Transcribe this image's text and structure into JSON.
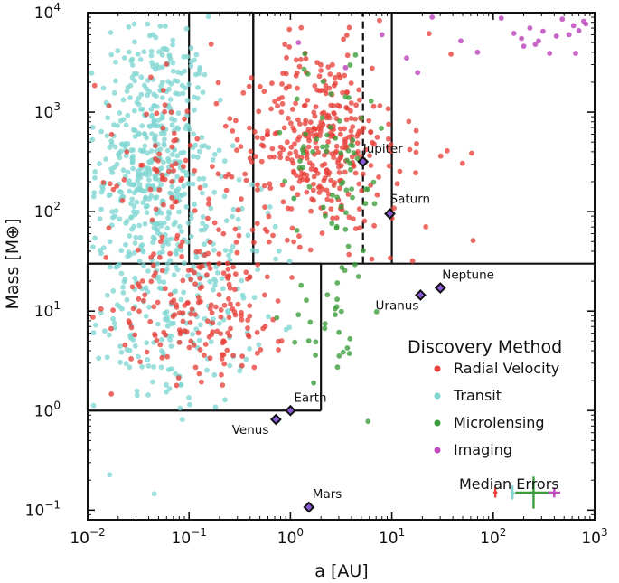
{
  "chart_data": {
    "type": "scatter",
    "xlabel": "a [AU]",
    "ylabel": "Mass [M⊕]",
    "xscale": "log",
    "yscale": "log",
    "xlim": [
      0.01,
      1000
    ],
    "ylim": [
      0.08,
      10000
    ],
    "x_ticks": [
      {
        "value": 0.01,
        "base": "10",
        "exp": "−2"
      },
      {
        "value": 0.1,
        "base": "10",
        "exp": "−1"
      },
      {
        "value": 1,
        "base": "10",
        "exp": "0"
      },
      {
        "value": 10,
        "base": "10",
        "exp": "1"
      },
      {
        "value": 100,
        "base": "10",
        "exp": "2"
      },
      {
        "value": 1000,
        "base": "10",
        "exp": "3"
      }
    ],
    "y_ticks": [
      {
        "value": 0.1,
        "base": "10",
        "exp": "−1"
      },
      {
        "value": 1,
        "base": "10",
        "exp": "0"
      },
      {
        "value": 10,
        "base": "10",
        "exp": "1"
      },
      {
        "value": 100,
        "base": "10",
        "exp": "2"
      },
      {
        "value": 1000,
        "base": "10",
        "exp": "3"
      },
      {
        "value": 10000,
        "base": "10",
        "exp": "4"
      }
    ],
    "legend": {
      "title": "Discovery Method",
      "placement": "lower-right",
      "entries": [
        {
          "label": "Radial Velocity",
          "color": "#e8403a"
        },
        {
          "label": "Transit",
          "color": "#7fd6d2"
        },
        {
          "label": "Microlensing",
          "color": "#3a9c3a"
        },
        {
          "label": "Imaging",
          "color": "#c04cc0"
        }
      ]
    },
    "median_errors_label": "Median Errors",
    "median_errors": [
      {
        "method": "Radial Velocity",
        "x": 105,
        "y": 0.15,
        "color": "#e8403a",
        "xerr_dex": 0.02,
        "yerr_dex": 0.05
      },
      {
        "method": "Transit",
        "x": 155,
        "y": 0.15,
        "color": "#7fd6d2",
        "xerr_dex": 0.02,
        "yerr_dex": 0.07
      },
      {
        "method": "Microlensing",
        "x": 250,
        "y": 0.15,
        "color": "#3a9c3a",
        "xerr_dex": 0.18,
        "yerr_dex": 0.16
      },
      {
        "method": "Imaging",
        "x": 400,
        "y": 0.15,
        "color": "#c04cc0",
        "xerr_dex": 0.06,
        "yerr_dex": 0.05
      }
    ],
    "solar_system": [
      {
        "name": "Mars",
        "a": 1.52,
        "mass": 0.107
      },
      {
        "name": "Venus",
        "a": 0.72,
        "mass": 0.815
      },
      {
        "name": "Earth",
        "a": 1.0,
        "mass": 1.0
      },
      {
        "name": "Uranus",
        "a": 19.2,
        "mass": 14.5
      },
      {
        "name": "Neptune",
        "a": 30.1,
        "mass": 17.1
      },
      {
        "name": "Saturn",
        "a": 9.58,
        "mass": 95.2
      },
      {
        "name": "Jupiter",
        "a": 5.2,
        "mass": 317.8
      }
    ],
    "boxes": [
      {
        "x": [
          0.1,
          0.43
        ],
        "y": [
          30,
          10000
        ],
        "style": "solid"
      },
      {
        "x": [
          0.43,
          5.2
        ],
        "y": [
          30,
          10000
        ],
        "style": "solid-left-dashed-right"
      },
      {
        "x": [
          5.2,
          10
        ],
        "y": [
          30,
          10000
        ],
        "style": "solid-right"
      },
      {
        "x": [
          0.01,
          1000
        ],
        "y": [
          30,
          30
        ],
        "style": "solid"
      },
      {
        "x": [
          0.01,
          2.0
        ],
        "y": [
          1,
          30
        ],
        "style": "solid"
      }
    ],
    "series": [
      {
        "name": "Transit",
        "color": "#7fd6d2",
        "clusters": [
          {
            "count": 520,
            "log_a_mean": -1.35,
            "log_a_sd": 0.28,
            "log_m_mean": 2.5,
            "log_m_sd": 0.75
          },
          {
            "count": 160,
            "log_a_mean": -1.15,
            "log_a_sd": 0.38,
            "log_m_mean": 0.9,
            "log_m_sd": 0.45
          },
          {
            "count": 40,
            "log_a_mean": -0.6,
            "log_a_sd": 0.35,
            "log_m_mean": 1.7,
            "log_m_sd": 0.6
          }
        ]
      },
      {
        "name": "Radial Velocity",
        "color": "#e8403a",
        "clusters": [
          {
            "count": 300,
            "log_a_mean": 0.3,
            "log_a_sd": 0.3,
            "log_m_mean": 2.75,
            "log_m_sd": 0.45
          },
          {
            "count": 170,
            "log_a_mean": -0.85,
            "log_a_sd": 0.45,
            "log_m_mean": 1.0,
            "log_m_sd": 0.35
          },
          {
            "count": 110,
            "log_a_mean": -0.6,
            "log_a_sd": 0.65,
            "log_m_mean": 2.3,
            "log_m_sd": 0.6
          },
          {
            "count": 40,
            "log_a_mean": -1.25,
            "log_a_sd": 0.12,
            "log_m_mean": 2.4,
            "log_m_sd": 0.45
          },
          {
            "count": 35,
            "log_a_mean": 1.0,
            "log_a_sd": 0.35,
            "log_m_mean": 2.6,
            "log_m_sd": 0.7
          }
        ]
      },
      {
        "name": "Microlensing",
        "color": "#3a9c3a",
        "clusters": [
          {
            "count": 75,
            "log_a_mean": 0.45,
            "log_a_sd": 0.25,
            "log_m_mean": 2.4,
            "log_m_sd": 0.65
          },
          {
            "count": 25,
            "log_a_mean": 0.35,
            "log_a_sd": 0.2,
            "log_m_mean": 0.9,
            "log_m_sd": 0.35
          }
        ]
      },
      {
        "name": "Imaging",
        "color": "#c04cc0",
        "points": [
          [
            1.2,
            5000
          ],
          [
            3.5,
            2800
          ],
          [
            8,
            6000
          ],
          [
            18,
            2500
          ],
          [
            48,
            5200
          ],
          [
            120,
            8800
          ],
          [
            160,
            6200
          ],
          [
            190,
            5500
          ],
          [
            230,
            7000
          ],
          [
            260,
            4800
          ],
          [
            310,
            6500
          ],
          [
            360,
            3900
          ],
          [
            420,
            5800
          ],
          [
            480,
            8600
          ],
          [
            560,
            6000
          ],
          [
            620,
            7400
          ],
          [
            700,
            6600
          ],
          [
            780,
            8200
          ],
          [
            820,
            7700
          ],
          [
            200,
            4600
          ],
          [
            280,
            5200
          ],
          [
            14,
            3500
          ],
          [
            25,
            9000
          ],
          [
            70,
            4000
          ],
          [
            650,
            3900
          ]
        ]
      }
    ]
  }
}
